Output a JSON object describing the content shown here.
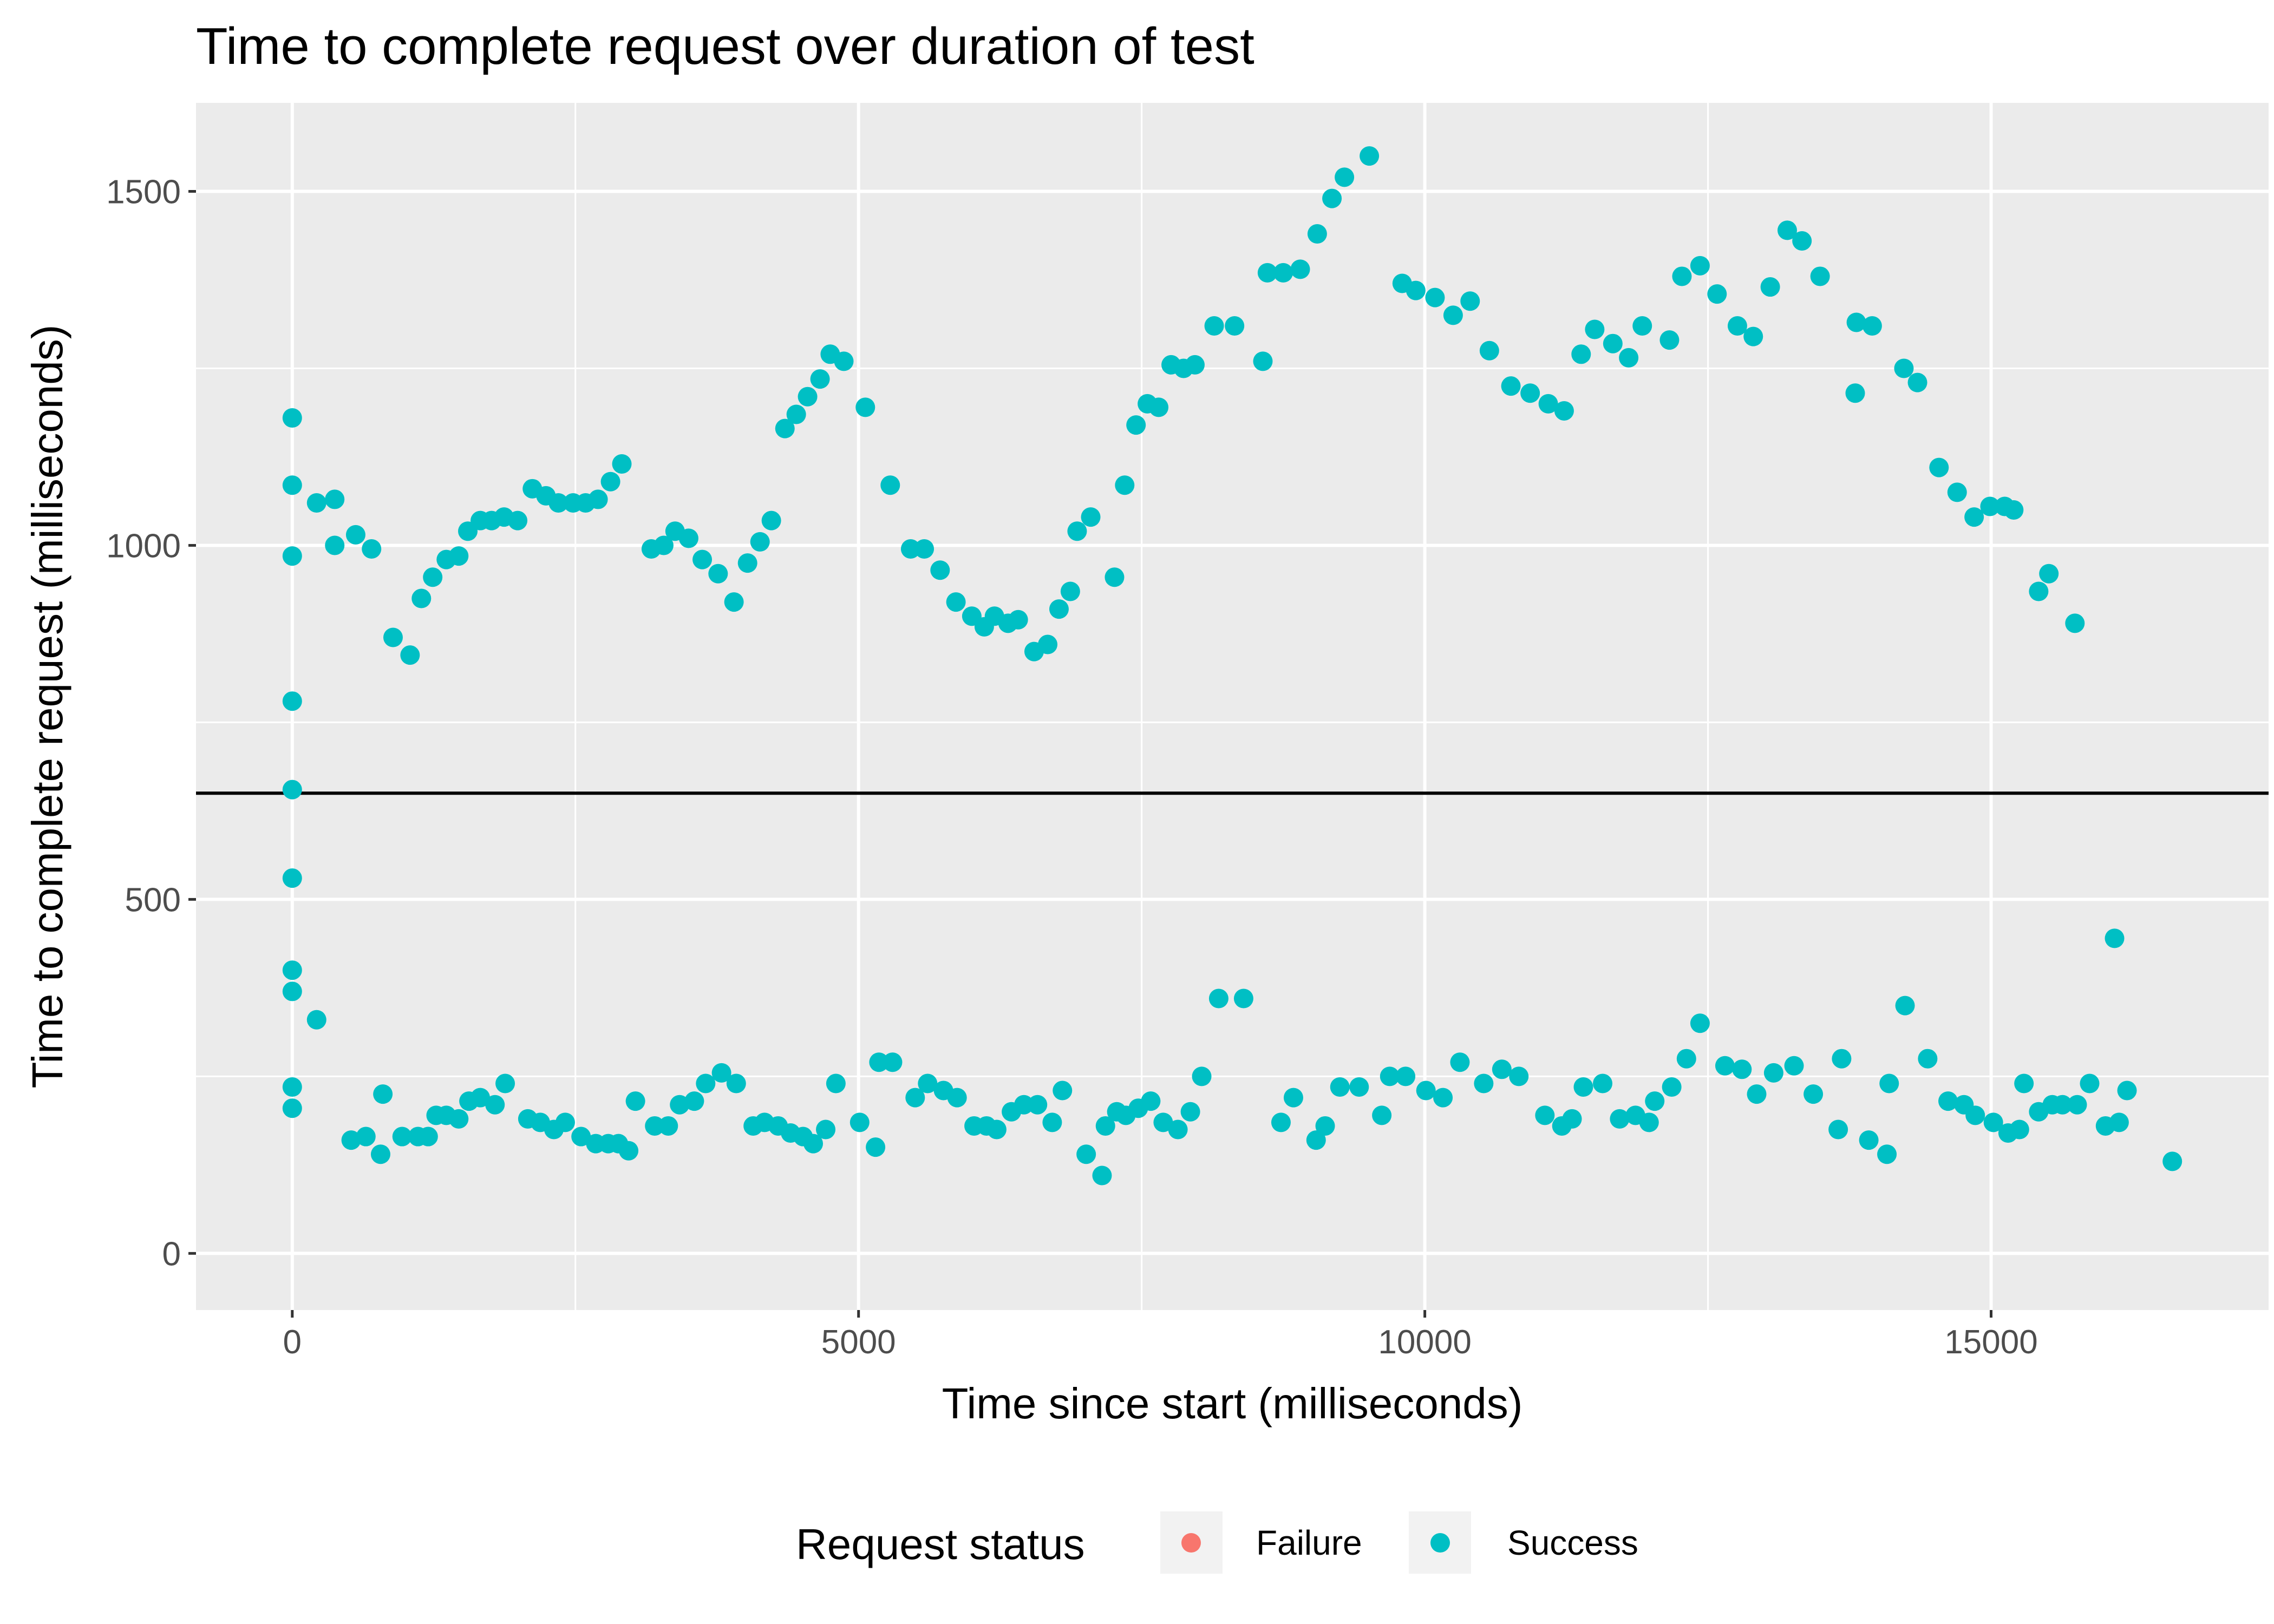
{
  "chart_data": {
    "type": "scatter",
    "title": "Time to complete request over duration of test",
    "xlabel": "Time since start (milliseconds)",
    "ylabel": "Time to complete request (milliseconds)",
    "xlim": [
      -850,
      17450
    ],
    "ylim": [
      -80,
      1625
    ],
    "x_ticks": [
      0,
      5000,
      10000,
      15000
    ],
    "x_tick_labels": [
      "0",
      "5000",
      "10000",
      "15000"
    ],
    "y_ticks": [
      0,
      500,
      1000,
      1500
    ],
    "y_tick_labels": [
      "0",
      "500",
      "1000",
      "1500"
    ],
    "reference_line_y": 650,
    "grid": true,
    "panel_background": "#ebebeb",
    "grid_color": "#ffffff",
    "reference_line_color": "#000000",
    "legend": {
      "title": "Request status",
      "position": "bottom",
      "entries": [
        {
          "label": "Failure",
          "color": "#f8766d"
        },
        {
          "label": "Success",
          "color": "#00bfc4"
        }
      ]
    },
    "series": [
      {
        "name": "Failure",
        "color": "#f8766d",
        "points": []
      },
      {
        "name": "Success",
        "color": "#00bfc4",
        "points": [
          [
            0,
            1180
          ],
          [
            0,
            1085
          ],
          [
            0,
            985
          ],
          [
            0,
            780
          ],
          [
            0,
            655
          ],
          [
            0,
            530
          ],
          [
            0,
            400
          ],
          [
            0,
            370
          ],
          [
            0,
            235
          ],
          [
            0,
            205
          ],
          [
            215,
            1060
          ],
          [
            215,
            330
          ],
          [
            375,
            1000
          ],
          [
            375,
            1065
          ],
          [
            520,
            160
          ],
          [
            560,
            1015
          ],
          [
            650,
            165
          ],
          [
            700,
            995
          ],
          [
            780,
            140
          ],
          [
            800,
            225
          ],
          [
            890,
            870
          ],
          [
            970,
            165
          ],
          [
            1040,
            845
          ],
          [
            1110,
            165
          ],
          [
            1140,
            925
          ],
          [
            1200,
            165
          ],
          [
            1240,
            955
          ],
          [
            1270,
            195
          ],
          [
            1360,
            980
          ],
          [
            1360,
            195
          ],
          [
            1470,
            985
          ],
          [
            1470,
            190
          ],
          [
            1550,
            1020
          ],
          [
            1560,
            215
          ],
          [
            1660,
            1035
          ],
          [
            1660,
            220
          ],
          [
            1760,
            1035
          ],
          [
            1790,
            210
          ],
          [
            1870,
            1040
          ],
          [
            1880,
            240
          ],
          [
            1990,
            1035
          ],
          [
            2080,
            190
          ],
          [
            2120,
            1080
          ],
          [
            2190,
            185
          ],
          [
            2240,
            1070
          ],
          [
            2310,
            175
          ],
          [
            2350,
            1060
          ],
          [
            2410,
            185
          ],
          [
            2480,
            1060
          ],
          [
            2550,
            165
          ],
          [
            2590,
            1060
          ],
          [
            2680,
            155
          ],
          [
            2700,
            1065
          ],
          [
            2790,
            155
          ],
          [
            2810,
            1090
          ],
          [
            2880,
            155
          ],
          [
            2910,
            1115
          ],
          [
            2970,
            145
          ],
          [
            3030,
            215
          ],
          [
            3170,
            995
          ],
          [
            3200,
            180
          ],
          [
            3280,
            1000
          ],
          [
            3320,
            180
          ],
          [
            3380,
            1020
          ],
          [
            3420,
            210
          ],
          [
            3500,
            1010
          ],
          [
            3550,
            215
          ],
          [
            3620,
            980
          ],
          [
            3650,
            240
          ],
          [
            3760,
            960
          ],
          [
            3790,
            255
          ],
          [
            3900,
            920
          ],
          [
            3920,
            240
          ],
          [
            4020,
            975
          ],
          [
            4070,
            180
          ],
          [
            4130,
            1005
          ],
          [
            4170,
            185
          ],
          [
            4230,
            1035
          ],
          [
            4290,
            180
          ],
          [
            4350,
            1165
          ],
          [
            4400,
            170
          ],
          [
            4450,
            1185
          ],
          [
            4510,
            165
          ],
          [
            4550,
            1210
          ],
          [
            4600,
            155
          ],
          [
            4660,
            1235
          ],
          [
            4710,
            175
          ],
          [
            4750,
            1270
          ],
          [
            4800,
            240
          ],
          [
            4870,
            1260
          ],
          [
            5010,
            185
          ],
          [
            5060,
            1195
          ],
          [
            5150,
            150
          ],
          [
            5180,
            270
          ],
          [
            5280,
            1085
          ],
          [
            5300,
            270
          ],
          [
            5460,
            995
          ],
          [
            5500,
            220
          ],
          [
            5580,
            995
          ],
          [
            5610,
            240
          ],
          [
            5720,
            965
          ],
          [
            5750,
            230
          ],
          [
            5860,
            920
          ],
          [
            5870,
            220
          ],
          [
            6000,
            900
          ],
          [
            6020,
            180
          ],
          [
            6110,
            885
          ],
          [
            6130,
            180
          ],
          [
            6200,
            900
          ],
          [
            6220,
            175
          ],
          [
            6320,
            890
          ],
          [
            6350,
            200
          ],
          [
            6410,
            895
          ],
          [
            6460,
            210
          ],
          [
            6550,
            850
          ],
          [
            6580,
            210
          ],
          [
            6670,
            860
          ],
          [
            6710,
            185
          ],
          [
            6770,
            910
          ],
          [
            6800,
            230
          ],
          [
            6870,
            935
          ],
          [
            6930,
            1020
          ],
          [
            7010,
            140
          ],
          [
            7050,
            1040
          ],
          [
            7150,
            110
          ],
          [
            7180,
            180
          ],
          [
            7260,
            955
          ],
          [
            7280,
            200
          ],
          [
            7350,
            1085
          ],
          [
            7360,
            195
          ],
          [
            7450,
            1170
          ],
          [
            7470,
            205
          ],
          [
            7550,
            1200
          ],
          [
            7580,
            215
          ],
          [
            7650,
            1195
          ],
          [
            7690,
            185
          ],
          [
            7760,
            1255
          ],
          [
            7820,
            175
          ],
          [
            7870,
            1250
          ],
          [
            7930,
            200
          ],
          [
            7970,
            1255
          ],
          [
            8030,
            250
          ],
          [
            8140,
            1310
          ],
          [
            8180,
            360
          ],
          [
            8320,
            1310
          ],
          [
            8400,
            360
          ],
          [
            8570,
            1260
          ],
          [
            8610,
            1385
          ],
          [
            8730,
            185
          ],
          [
            8750,
            1385
          ],
          [
            8840,
            220
          ],
          [
            8900,
            1390
          ],
          [
            9040,
            160
          ],
          [
            9050,
            1440
          ],
          [
            9120,
            180
          ],
          [
            9180,
            1490
          ],
          [
            9250,
            235
          ],
          [
            9290,
            1520
          ],
          [
            9420,
            235
          ],
          [
            9510,
            1550
          ],
          [
            9620,
            195
          ],
          [
            9690,
            250
          ],
          [
            9800,
            1370
          ],
          [
            9830,
            250
          ],
          [
            9920,
            1360
          ],
          [
            10010,
            230
          ],
          [
            10090,
            1350
          ],
          [
            10160,
            220
          ],
          [
            10250,
            1325
          ],
          [
            10310,
            270
          ],
          [
            10400,
            1345
          ],
          [
            10520,
            240
          ],
          [
            10570,
            1275
          ],
          [
            10680,
            260
          ],
          [
            10760,
            1225
          ],
          [
            10830,
            250
          ],
          [
            10930,
            1215
          ],
          [
            11060,
            195
          ],
          [
            11090,
            1200
          ],
          [
            11210,
            180
          ],
          [
            11230,
            1190
          ],
          [
            11300,
            190
          ],
          [
            11380,
            1270
          ],
          [
            11400,
            235
          ],
          [
            11500,
            1305
          ],
          [
            11570,
            240
          ],
          [
            11660,
            1285
          ],
          [
            11720,
            190
          ],
          [
            11800,
            1265
          ],
          [
            11860,
            195
          ],
          [
            11920,
            1310
          ],
          [
            11980,
            185
          ],
          [
            12030,
            215
          ],
          [
            12160,
            1290
          ],
          [
            12180,
            235
          ],
          [
            12270,
            1380
          ],
          [
            12310,
            275
          ],
          [
            12430,
            1395
          ],
          [
            12430,
            325
          ],
          [
            12580,
            1355
          ],
          [
            12650,
            265
          ],
          [
            12760,
            1310
          ],
          [
            12800,
            260
          ],
          [
            12900,
            1295
          ],
          [
            12930,
            225
          ],
          [
            13050,
            1365
          ],
          [
            13080,
            255
          ],
          [
            13200,
            1445
          ],
          [
            13260,
            265
          ],
          [
            13330,
            1430
          ],
          [
            13430,
            225
          ],
          [
            13490,
            1380
          ],
          [
            13650,
            175
          ],
          [
            13680,
            275
          ],
          [
            13800,
            1215
          ],
          [
            13810,
            1315
          ],
          [
            13920,
            160
          ],
          [
            13950,
            1310
          ],
          [
            14080,
            140
          ],
          [
            14100,
            240
          ],
          [
            14230,
            1250
          ],
          [
            14240,
            350
          ],
          [
            14350,
            1230
          ],
          [
            14440,
            275
          ],
          [
            14540,
            1110
          ],
          [
            14620,
            215
          ],
          [
            14700,
            1075
          ],
          [
            14760,
            210
          ],
          [
            14850,
            1040
          ],
          [
            14860,
            195
          ],
          [
            14990,
            1055
          ],
          [
            15020,
            185
          ],
          [
            15120,
            1055
          ],
          [
            15150,
            170
          ],
          [
            15200,
            1050
          ],
          [
            15250,
            175
          ],
          [
            15290,
            240
          ],
          [
            15420,
            935
          ],
          [
            15420,
            200
          ],
          [
            15510,
            960
          ],
          [
            15540,
            210
          ],
          [
            15630,
            210
          ],
          [
            15740,
            890
          ],
          [
            15760,
            210
          ],
          [
            15870,
            240
          ],
          [
            16010,
            180
          ],
          [
            16090,
            445
          ],
          [
            16130,
            185
          ],
          [
            16200,
            230
          ],
          [
            16600,
            130
          ]
        ]
      }
    ]
  }
}
